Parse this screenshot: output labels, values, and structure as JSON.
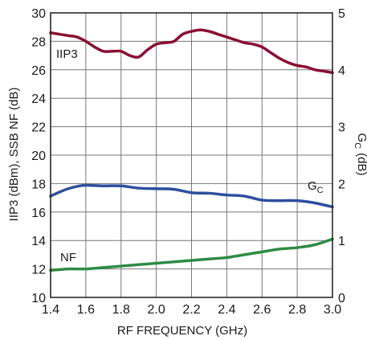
{
  "chart_data": {
    "type": "line",
    "title": "",
    "xlabel": "RF FREQUENCY (GHz)",
    "ylabel": "IIP3 (dBm), SSB NF (dB)",
    "y2label": "G",
    "y2label_sub": "C",
    "y2label_unit": "(dB)",
    "xlim": [
      1.4,
      3.0
    ],
    "ylim": [
      10,
      30
    ],
    "y2lim": [
      0,
      5
    ],
    "grid": true,
    "x_ticks": [
      "1.4",
      "1.6",
      "1.8",
      "2.0",
      "2.2",
      "2.4",
      "2.6",
      "2.8",
      "3.0"
    ],
    "y_ticks": [
      "10",
      "12",
      "14",
      "16",
      "18",
      "20",
      "22",
      "24",
      "26",
      "28",
      "30"
    ],
    "y2_ticks": [
      "0",
      "1",
      "2",
      "3",
      "4",
      "5"
    ],
    "series": [
      {
        "name": "IIP3",
        "axis": "left",
        "color": "#8b0f33",
        "x": [
          1.4,
          1.45,
          1.5,
          1.55,
          1.6,
          1.65,
          1.7,
          1.75,
          1.8,
          1.85,
          1.9,
          1.95,
          2.0,
          2.05,
          2.1,
          2.15,
          2.2,
          2.25,
          2.3,
          2.35,
          2.4,
          2.45,
          2.5,
          2.55,
          2.6,
          2.65,
          2.7,
          2.75,
          2.8,
          2.85,
          2.9,
          2.95,
          3.0
        ],
        "y": [
          28.6,
          28.5,
          28.4,
          28.3,
          28.0,
          27.6,
          27.3,
          27.3,
          27.3,
          27.0,
          26.9,
          27.4,
          27.8,
          27.9,
          28.0,
          28.5,
          28.7,
          28.8,
          28.7,
          28.5,
          28.3,
          28.1,
          27.9,
          27.8,
          27.6,
          27.2,
          26.8,
          26.5,
          26.3,
          26.2,
          26.0,
          25.9,
          25.8
        ]
      },
      {
        "name": "G",
        "name_sub": "C",
        "axis": "right",
        "color": "#2e4f9e",
        "x": [
          1.4,
          1.45,
          1.5,
          1.55,
          1.6,
          1.7,
          1.8,
          1.9,
          2.0,
          2.1,
          2.2,
          2.3,
          2.4,
          2.5,
          2.6,
          2.7,
          2.8,
          2.9,
          3.0
        ],
        "y": [
          1.78,
          1.85,
          1.91,
          1.95,
          1.97,
          1.96,
          1.96,
          1.92,
          1.91,
          1.9,
          1.84,
          1.83,
          1.8,
          1.78,
          1.71,
          1.7,
          1.7,
          1.66,
          1.59
        ]
      },
      {
        "name": "NF",
        "axis": "left",
        "color": "#2e8b45",
        "x": [
          1.4,
          1.5,
          1.6,
          1.7,
          1.8,
          1.9,
          2.0,
          2.1,
          2.2,
          2.3,
          2.4,
          2.5,
          2.6,
          2.7,
          2.8,
          2.9,
          3.0
        ],
        "y": [
          11.9,
          12.0,
          12.0,
          12.1,
          12.2,
          12.3,
          12.4,
          12.5,
          12.6,
          12.7,
          12.8,
          13.0,
          13.2,
          13.4,
          13.5,
          13.7,
          14.1
        ]
      }
    ]
  }
}
